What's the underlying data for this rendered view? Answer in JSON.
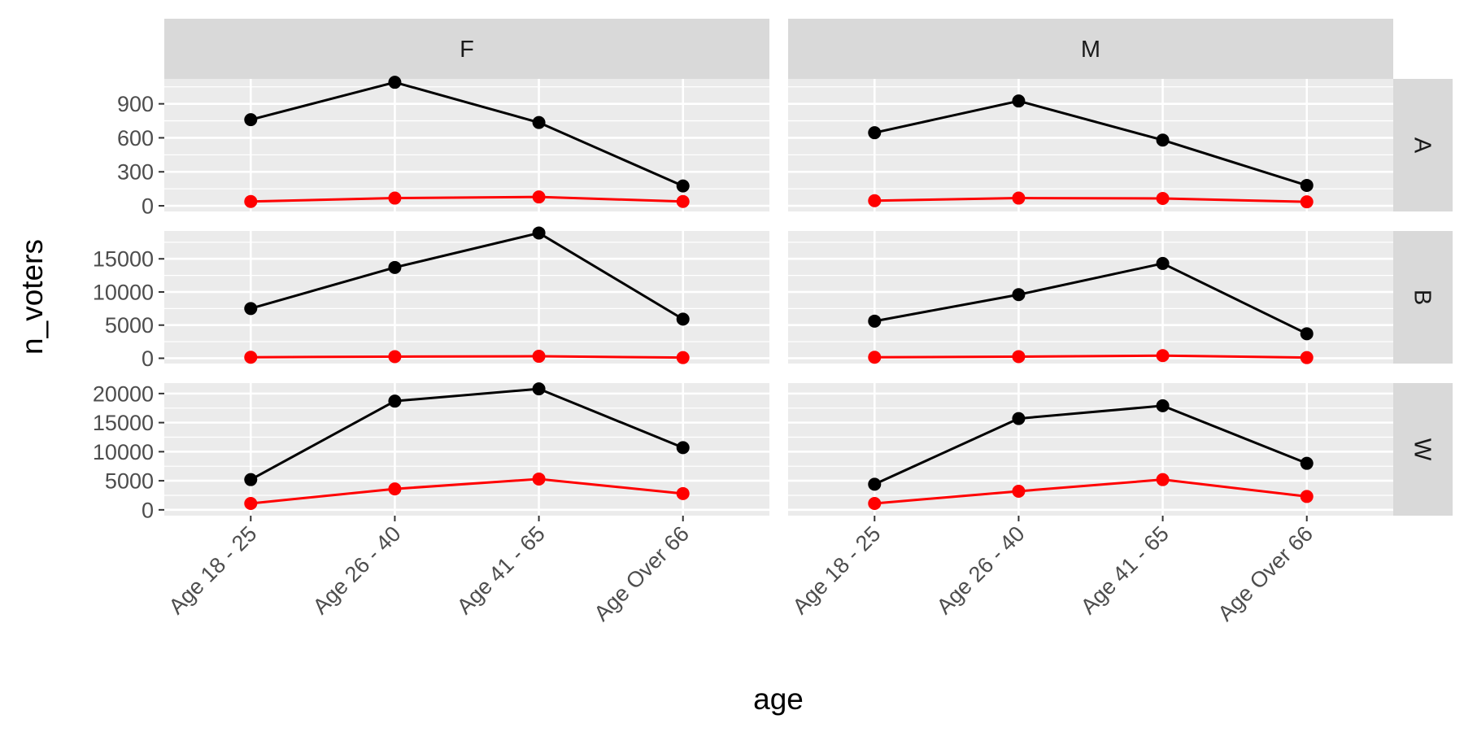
{
  "chart_data": {
    "type": "line",
    "facets": {
      "cols": [
        "F",
        "M"
      ],
      "rows": [
        "A",
        "B",
        "W"
      ]
    },
    "xlabel": "age",
    "ylabel": "n_voters",
    "categories": [
      "Age 18 - 25",
      "Age 26 - 40",
      "Age 41 - 65",
      "Age Over 66"
    ],
    "y_axes": {
      "A": {
        "ylim": [
          -50,
          1120
        ],
        "ticks": [
          0,
          300,
          600,
          900
        ]
      },
      "B": {
        "ylim": [
          -800,
          19200
        ],
        "ticks": [
          0,
          5000,
          10000,
          15000
        ]
      },
      "W": {
        "ylim": [
          -1000,
          21800
        ],
        "ticks": [
          0,
          5000,
          10000,
          15000,
          20000
        ]
      }
    },
    "series_colors": [
      "#000000",
      "#ff0000"
    ],
    "panels": [
      {
        "row": "A",
        "col": "F",
        "series": [
          {
            "values": [
              760,
              1090,
              735,
              175
            ]
          },
          {
            "values": [
              38,
              68,
              78,
              38
            ]
          }
        ]
      },
      {
        "row": "A",
        "col": "M",
        "series": [
          {
            "values": [
              645,
              925,
              580,
              180
            ]
          },
          {
            "values": [
              45,
              68,
              65,
              35
            ]
          }
        ]
      },
      {
        "row": "B",
        "col": "F",
        "series": [
          {
            "values": [
              7500,
              13700,
              18900,
              5900
            ]
          },
          {
            "values": [
              150,
              250,
              300,
              100
            ]
          }
        ]
      },
      {
        "row": "B",
        "col": "M",
        "series": [
          {
            "values": [
              5600,
              9600,
              14300,
              3700
            ]
          },
          {
            "values": [
              150,
              250,
              400,
              100
            ]
          }
        ]
      },
      {
        "row": "W",
        "col": "F",
        "series": [
          {
            "values": [
              5200,
              18700,
              20800,
              10700
            ]
          },
          {
            "values": [
              1100,
              3600,
              5300,
              2800
            ]
          }
        ]
      },
      {
        "row": "W",
        "col": "M",
        "series": [
          {
            "values": [
              4400,
              15700,
              17900,
              8000
            ]
          },
          {
            "values": [
              1100,
              3200,
              5200,
              2300
            ]
          }
        ]
      }
    ]
  }
}
